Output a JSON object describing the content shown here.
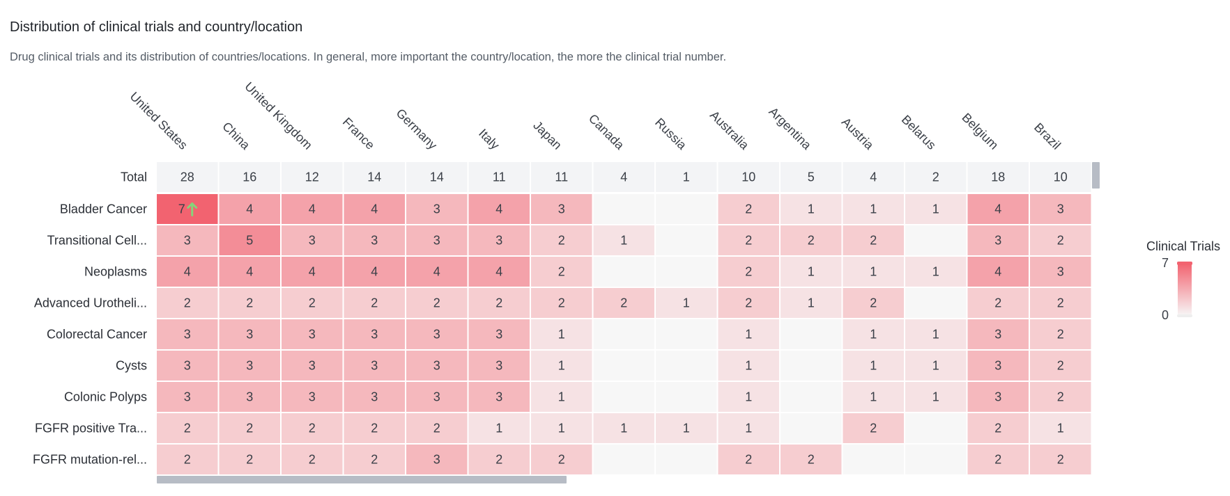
{
  "header": {
    "title": "Distribution of clinical trials and country/location",
    "subtitle": "Drug clinical trials and its distribution of countries/locations. In general, more important the country/location, the more the clinical trial number."
  },
  "legend": {
    "title": "Clinical Trials",
    "max_label": "7",
    "min_label": "0",
    "color_low": "#f7f7f7",
    "color_high": "#f26370"
  },
  "colors": {
    "total_row_bg": "#f3f4f6",
    "empty_cell": "#f7f7f7",
    "highlight_arrow": "#86d47a",
    "scrollbar": "#b7bcc5"
  },
  "chart_data": {
    "type": "heatmap",
    "title": "Distribution of clinical trials and country/location",
    "x_categories": [
      "United States",
      "China",
      "United Kingdom",
      "France",
      "Germany",
      "Italy",
      "Japan",
      "Canada",
      "Russia",
      "Australia",
      "Argentina",
      "Austria",
      "Belarus",
      "Belgium",
      "Brazil"
    ],
    "totals_label": "Total",
    "totals": [
      28,
      16,
      12,
      14,
      14,
      11,
      11,
      4,
      1,
      10,
      5,
      4,
      2,
      18,
      10
    ],
    "y_categories": [
      "Bladder Cancer",
      "Transitional Cell...",
      "Neoplasms",
      "Advanced Urotheli...",
      "Colorectal Cancer",
      "Cysts",
      "Colonic Polyps",
      "FGFR positive Tra...",
      "FGFR mutation-rel..."
    ],
    "values": [
      [
        7,
        4,
        4,
        4,
        3,
        4,
        3,
        null,
        null,
        2,
        1,
        1,
        1,
        4,
        3
      ],
      [
        3,
        5,
        3,
        3,
        3,
        3,
        2,
        1,
        null,
        2,
        2,
        2,
        null,
        3,
        2
      ],
      [
        4,
        4,
        4,
        4,
        4,
        4,
        2,
        null,
        null,
        2,
        1,
        1,
        1,
        4,
        3
      ],
      [
        2,
        2,
        2,
        2,
        2,
        2,
        2,
        2,
        1,
        2,
        1,
        2,
        null,
        2,
        2
      ],
      [
        3,
        3,
        3,
        3,
        3,
        3,
        1,
        null,
        null,
        1,
        null,
        1,
        1,
        3,
        2
      ],
      [
        3,
        3,
        3,
        3,
        3,
        3,
        1,
        null,
        null,
        1,
        null,
        1,
        1,
        3,
        2
      ],
      [
        3,
        3,
        3,
        3,
        3,
        3,
        1,
        null,
        null,
        1,
        null,
        1,
        1,
        3,
        2
      ],
      [
        2,
        2,
        2,
        2,
        2,
        1,
        1,
        1,
        1,
        1,
        null,
        2,
        null,
        2,
        1
      ],
      [
        2,
        2,
        2,
        2,
        3,
        2,
        2,
        null,
        null,
        2,
        2,
        null,
        null,
        2,
        2
      ]
    ],
    "highlighted_cell": {
      "row": 0,
      "col": 0,
      "marker": "up-arrow"
    },
    "color_range": [
      0,
      7
    ],
    "legend_position": "right"
  }
}
